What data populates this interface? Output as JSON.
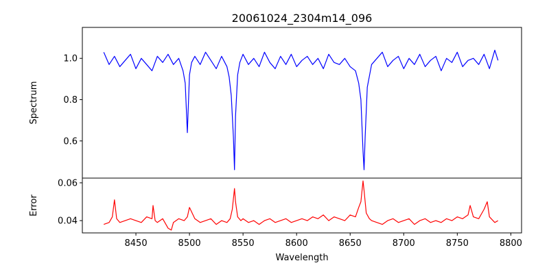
{
  "chart_data": [
    {
      "type": "line",
      "title": "20061024_2304m14_096",
      "xlabel": "",
      "ylabel": "Spectrum",
      "xlim": [
        8400,
        8810
      ],
      "ylim": [
        0.42,
        1.15
      ],
      "grid": false,
      "legend": "none",
      "color": "#0000ff",
      "xticks": [],
      "yticks": [
        {
          "value": 0.6,
          "label": "0.6"
        },
        {
          "value": 0.8,
          "label": "0.8"
        },
        {
          "value": 1.0,
          "label": "1.0"
        }
      ],
      "series": [
        {
          "x": [
            8420,
            8425,
            8430,
            8435,
            8440,
            8445,
            8450,
            8455,
            8460,
            8465,
            8470,
            8475,
            8480,
            8485,
            8490,
            8494,
            8496,
            8498,
            8500,
            8502,
            8505,
            8510,
            8515,
            8520,
            8525,
            8530,
            8535,
            8537,
            8539,
            8541,
            8542,
            8543,
            8545,
            8547,
            8550,
            8555,
            8560,
            8565,
            8570,
            8575,
            8580,
            8585,
            8590,
            8595,
            8600,
            8605,
            8610,
            8615,
            8620,
            8625,
            8630,
            8635,
            8640,
            8645,
            8650,
            8655,
            8658,
            8660,
            8662,
            8663,
            8664,
            8666,
            8670,
            8675,
            8680,
            8685,
            8690,
            8695,
            8700,
            8705,
            8710,
            8715,
            8720,
            8725,
            8730,
            8735,
            8740,
            8745,
            8750,
            8755,
            8760,
            8765,
            8770,
            8775,
            8780,
            8785,
            8788
          ],
          "y": [
            1.03,
            0.97,
            1.01,
            0.96,
            0.99,
            1.02,
            0.95,
            1.0,
            0.97,
            0.94,
            1.01,
            0.98,
            1.02,
            0.97,
            1.0,
            0.94,
            0.88,
            0.64,
            0.92,
            0.98,
            1.01,
            0.97,
            1.03,
            0.99,
            0.95,
            1.01,
            0.96,
            0.91,
            0.82,
            0.62,
            0.46,
            0.72,
            0.92,
            0.98,
            1.02,
            0.97,
            1.0,
            0.96,
            1.03,
            0.98,
            0.95,
            1.01,
            0.97,
            1.02,
            0.96,
            0.99,
            1.01,
            0.97,
            1.0,
            0.95,
            1.02,
            0.98,
            0.97,
            1.0,
            0.96,
            0.94,
            0.88,
            0.8,
            0.55,
            0.46,
            0.62,
            0.86,
            0.97,
            1.0,
            1.03,
            0.96,
            0.99,
            1.01,
            0.95,
            1.0,
            0.97,
            1.02,
            0.96,
            0.99,
            1.01,
            0.94,
            1.0,
            0.98,
            1.03,
            0.96,
            0.99,
            1.0,
            0.97,
            1.02,
            0.95,
            1.04,
            0.99
          ]
        }
      ]
    },
    {
      "type": "line",
      "title": "",
      "xlabel": "Wavelength",
      "ylabel": "Error",
      "xlim": [
        8400,
        8810
      ],
      "ylim": [
        0.0335,
        0.0625
      ],
      "grid": false,
      "legend": "none",
      "color": "#ff0000",
      "xticks": [
        {
          "value": 8450,
          "label": "8450"
        },
        {
          "value": 8500,
          "label": "8500"
        },
        {
          "value": 8550,
          "label": "8550"
        },
        {
          "value": 8600,
          "label": "8600"
        },
        {
          "value": 8650,
          "label": "8650"
        },
        {
          "value": 8700,
          "label": "8700"
        },
        {
          "value": 8750,
          "label": "8750"
        },
        {
          "value": 8800,
          "label": "8800"
        }
      ],
      "yticks": [
        {
          "value": 0.04,
          "label": "0.04"
        },
        {
          "value": 0.06,
          "label": "0.06"
        }
      ],
      "series": [
        {
          "x": [
            8420,
            8425,
            8428,
            8430,
            8432,
            8435,
            8440,
            8445,
            8450,
            8455,
            8460,
            8465,
            8466,
            8468,
            8470,
            8475,
            8480,
            8483,
            8485,
            8490,
            8495,
            8498,
            8500,
            8505,
            8510,
            8515,
            8520,
            8525,
            8530,
            8535,
            8538,
            8540,
            8542,
            8543,
            8545,
            8548,
            8550,
            8555,
            8560,
            8565,
            8570,
            8575,
            8580,
            8585,
            8590,
            8595,
            8600,
            8605,
            8610,
            8615,
            8620,
            8625,
            8630,
            8635,
            8640,
            8645,
            8650,
            8655,
            8658,
            8660,
            8662,
            8663,
            8665,
            8668,
            8670,
            8675,
            8680,
            8685,
            8690,
            8695,
            8700,
            8705,
            8710,
            8715,
            8720,
            8725,
            8730,
            8735,
            8740,
            8745,
            8750,
            8755,
            8760,
            8762,
            8765,
            8770,
            8775,
            8778,
            8780,
            8785,
            8788
          ],
          "y": [
            0.038,
            0.039,
            0.042,
            0.051,
            0.041,
            0.039,
            0.04,
            0.041,
            0.04,
            0.039,
            0.042,
            0.041,
            0.048,
            0.04,
            0.039,
            0.041,
            0.036,
            0.035,
            0.039,
            0.041,
            0.04,
            0.042,
            0.047,
            0.041,
            0.039,
            0.04,
            0.041,
            0.038,
            0.04,
            0.039,
            0.041,
            0.046,
            0.057,
            0.05,
            0.042,
            0.04,
            0.041,
            0.039,
            0.04,
            0.038,
            0.04,
            0.041,
            0.039,
            0.04,
            0.041,
            0.039,
            0.04,
            0.041,
            0.04,
            0.042,
            0.041,
            0.043,
            0.04,
            0.042,
            0.041,
            0.04,
            0.043,
            0.042,
            0.047,
            0.05,
            0.061,
            0.056,
            0.044,
            0.041,
            0.04,
            0.039,
            0.038,
            0.04,
            0.041,
            0.039,
            0.04,
            0.041,
            0.038,
            0.04,
            0.041,
            0.039,
            0.04,
            0.039,
            0.041,
            0.04,
            0.042,
            0.041,
            0.043,
            0.048,
            0.042,
            0.041,
            0.046,
            0.05,
            0.042,
            0.039,
            0.04
          ]
        }
      ]
    }
  ]
}
